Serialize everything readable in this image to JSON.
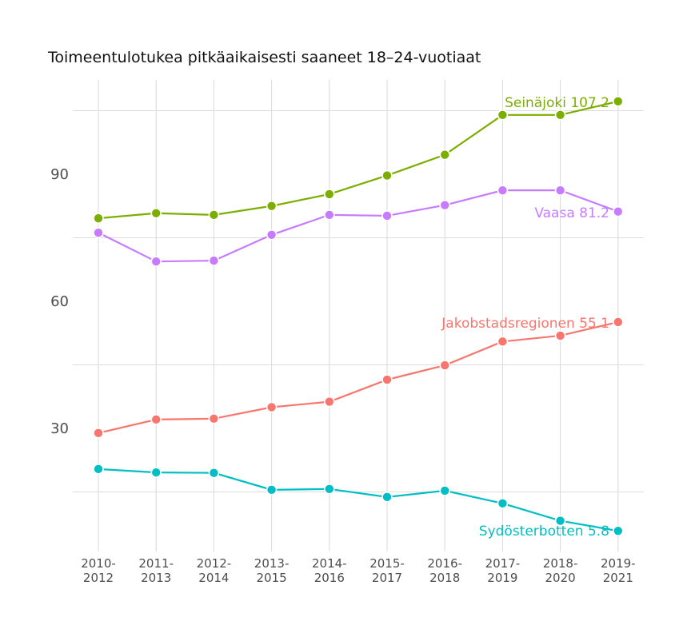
{
  "chart_data": {
    "type": "line",
    "title": "Toimeentulotukea pitkäaikaisesti saaneet 18–24-vuotiaat",
    "xlabel": "",
    "ylabel": "",
    "categories": [
      "2010-2012",
      "2011-2013",
      "2012-2014",
      "2013-2015",
      "2014-2016",
      "2015-2017",
      "2016-2018",
      "2017-2019",
      "2018-2020",
      "2019-2021"
    ],
    "x_tick_labels": [
      [
        "2010-",
        "2012"
      ],
      [
        "2011-",
        "2013"
      ],
      [
        "2012-",
        "2014"
      ],
      [
        "2013-",
        "2015"
      ],
      [
        "2014-",
        "2016"
      ],
      [
        "2015-",
        "2017"
      ],
      [
        "2016-",
        "2018"
      ],
      [
        "2017-",
        "2019"
      ],
      [
        "2018-",
        "2020"
      ],
      [
        "2019-",
        "2021"
      ]
    ],
    "y_ticks": [
      30,
      60,
      90
    ],
    "y_minor_gridlines": [
      15,
      45,
      75,
      105
    ],
    "ylim": [
      1.5,
      112
    ],
    "grid": true,
    "legend": "direct labels at line ends",
    "series": [
      {
        "name": "Seinäjoki",
        "color": "#7cae00",
        "end_label": "Seinäjoki 107.2",
        "values": [
          79.6,
          80.8,
          80.4,
          82.5,
          85.3,
          89.7,
          94.6,
          104.0,
          104.0,
          107.2
        ]
      },
      {
        "name": "Vaasa",
        "color": "#c77cff",
        "end_label": "Vaasa 81.2",
        "values": [
          76.2,
          69.4,
          69.6,
          75.7,
          80.4,
          80.2,
          82.7,
          86.2,
          86.2,
          81.2
        ]
      },
      {
        "name": "Jakobstadsregionen",
        "color": "#f8766d",
        "end_label": "Jakobstadsregionen 55.1",
        "values": [
          28.9,
          32.1,
          32.3,
          35.0,
          36.3,
          41.5,
          44.9,
          50.5,
          51.9,
          55.1
        ]
      },
      {
        "name": "Sydösterbotten",
        "color": "#00bfc4",
        "end_label": "Sydösterbotten 5.8",
        "values": [
          20.4,
          19.6,
          19.5,
          15.5,
          15.7,
          13.8,
          15.3,
          12.3,
          8.2,
          5.8
        ]
      }
    ]
  }
}
